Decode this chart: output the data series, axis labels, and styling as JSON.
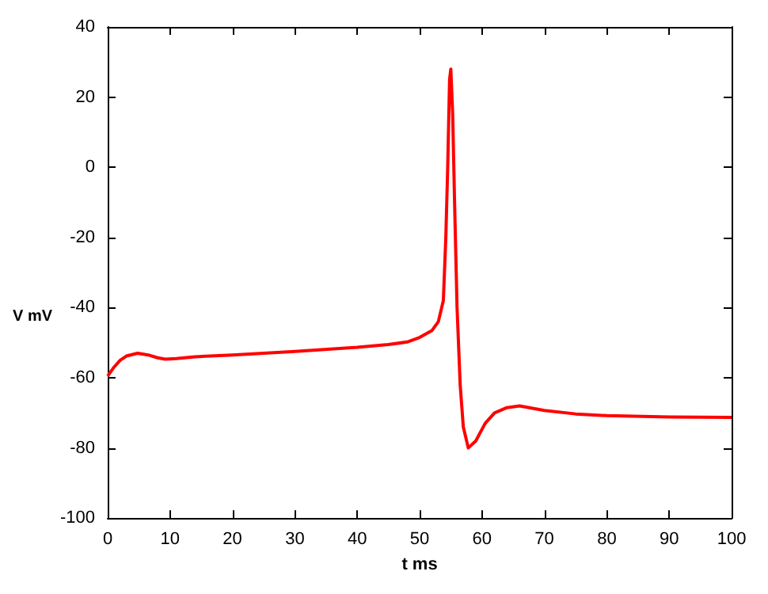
{
  "chart_data": {
    "type": "line",
    "xlabel": "t ms",
    "ylabel": "V mV",
    "x": [
      0,
      1,
      2,
      3,
      4.8,
      6.5,
      8,
      9.2,
      11,
      14,
      20,
      30,
      40,
      45,
      48,
      50,
      52,
      53,
      53.8,
      54.2,
      54.5,
      54.8,
      55,
      55.3,
      55.6,
      56,
      56.5,
      57,
      57.8,
      59,
      60.5,
      62,
      64,
      66,
      70,
      75,
      80,
      90,
      100
    ],
    "series": [
      {
        "color": "#ff0000",
        "values": [
          -59.5,
          -57,
          -55,
          -53.8,
          -53,
          -53.5,
          -54.3,
          -54.7,
          -54.5,
          -54,
          -53.5,
          -52.5,
          -51.3,
          -50.5,
          -49.8,
          -48.5,
          -46.5,
          -44,
          -38,
          -20,
          0,
          25,
          28,
          15,
          -10,
          -40,
          -62,
          -74,
          -80,
          -78,
          -73,
          -70,
          -68.5,
          -68,
          -69.3,
          -70.3,
          -70.8,
          -71.2,
          -71.3
        ]
      }
    ],
    "xlim": [
      0,
      100
    ],
    "xticks": [
      0,
      10,
      20,
      30,
      40,
      50,
      60,
      70,
      80,
      90,
      100
    ],
    "ylim": [
      -100,
      40
    ],
    "yticks": [
      -100,
      -80,
      -60,
      -40,
      -20,
      0,
      20,
      40
    ],
    "grid": false,
    "marker": "none",
    "line_style": "solid"
  }
}
